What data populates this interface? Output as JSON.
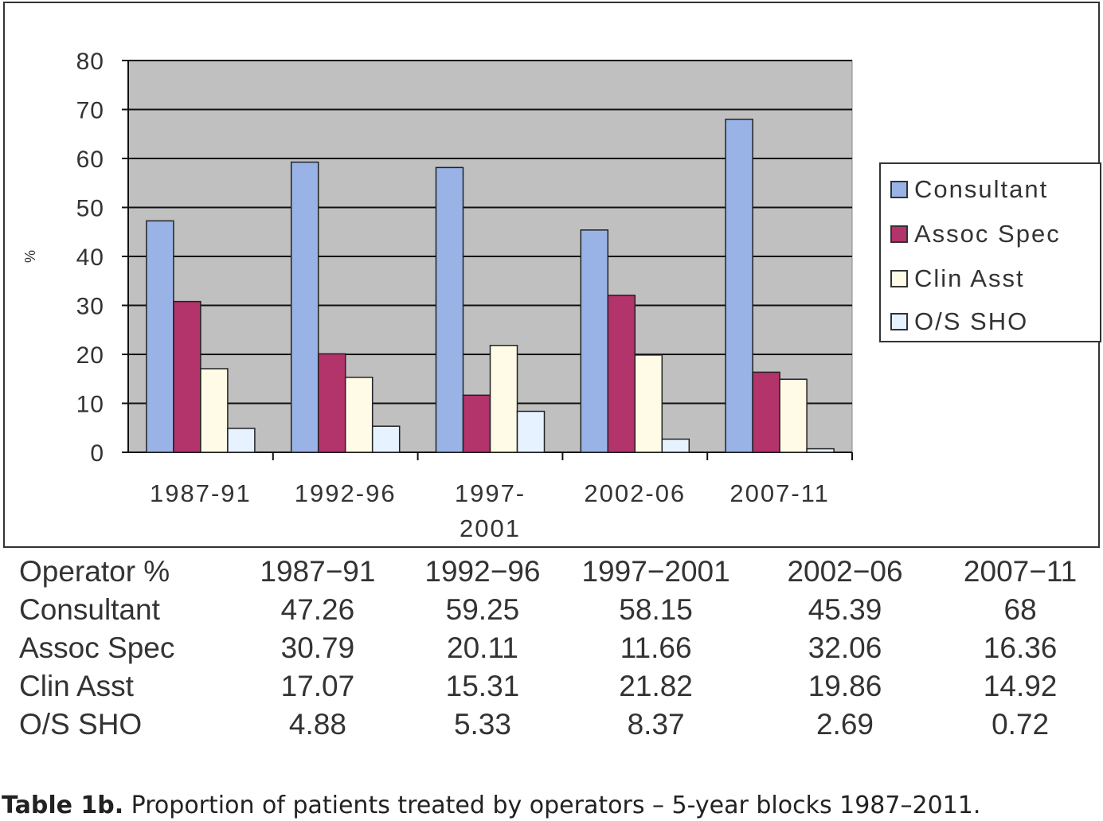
{
  "chart_data": {
    "type": "bar",
    "title": "",
    "xlabel": "",
    "ylabel": "%",
    "ylim": [
      0,
      80
    ],
    "yticks": [
      "0",
      "10",
      "20",
      "30",
      "40",
      "50",
      "60",
      "70",
      "80"
    ],
    "grid": true,
    "legend_position": "right",
    "categories": [
      "1987-91",
      "1992-96",
      "1997-2001",
      "2002-06",
      "2007-11"
    ],
    "category_tick_labels": [
      [
        "1987-91"
      ],
      [
        "1992-96"
      ],
      [
        "1997-",
        "2001"
      ],
      [
        "2002-06"
      ],
      [
        "2007-11"
      ]
    ],
    "series": [
      {
        "name": "Consultant",
        "color": "#99b3e6",
        "values": [
          47.26,
          59.25,
          58.15,
          45.39,
          68
        ]
      },
      {
        "name": "Assoc Spec",
        "color": "#b3336b",
        "values": [
          30.79,
          20.11,
          11.66,
          32.06,
          16.36
        ]
      },
      {
        "name": "Clin Asst",
        "color": "#fffbe6",
        "values": [
          17.07,
          15.31,
          21.82,
          19.86,
          14.92
        ]
      },
      {
        "name": "O/S SHO",
        "color": "#e6f2ff",
        "values": [
          4.88,
          5.33,
          8.37,
          2.69,
          0.72
        ]
      }
    ],
    "plot_background": "#c0c0c0"
  },
  "table": {
    "header": [
      "Operator %",
      "1987−91",
      "1992−96",
      "1997−2001",
      "2002−06",
      "2007−11"
    ],
    "rows": [
      [
        "Consultant",
        "47.26",
        "59.25",
        "58.15",
        "45.39",
        "68"
      ],
      [
        "Assoc Spec",
        "30.79",
        "20.11",
        "11.66",
        "32.06",
        "16.36"
      ],
      [
        "Clin Asst",
        "17.07",
        "15.31",
        "21.82",
        "19.86",
        "14.92"
      ],
      [
        "O/S SHO",
        "4.88",
        "5.33",
        "8.37",
        "2.69",
        "0.72"
      ]
    ]
  },
  "caption": {
    "label": "Table 1b.",
    "text": " Proportion of patients treated by operators – 5-year blocks 1987–2011."
  }
}
